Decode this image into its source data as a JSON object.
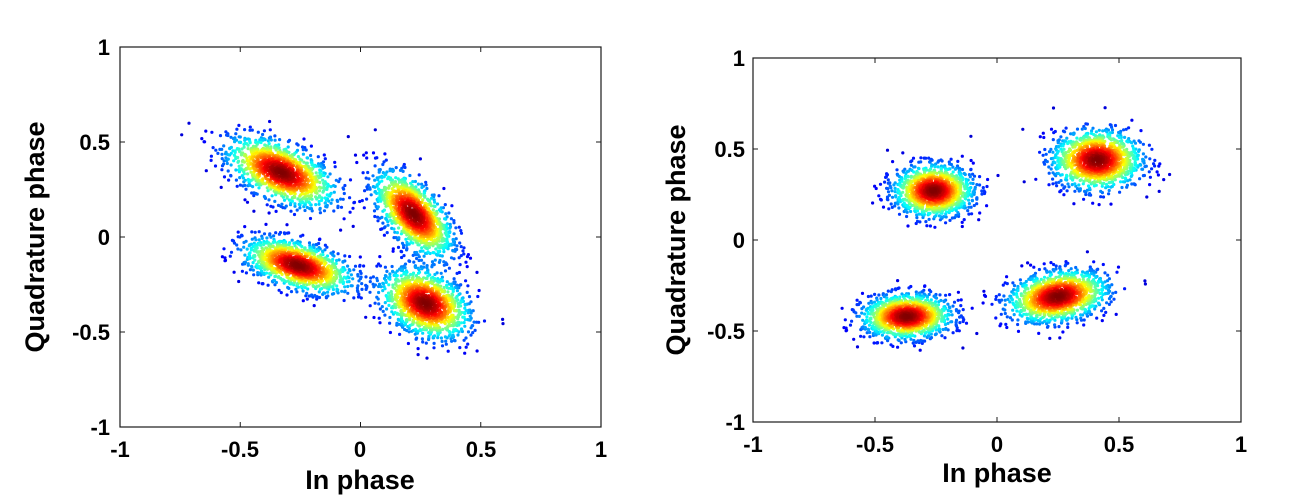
{
  "chart_data": [
    {
      "type": "scatter",
      "title": "",
      "xlabel": "In phase",
      "ylabel": "Quadrature phase",
      "xlim": [
        -1,
        1
      ],
      "ylim": [
        -1,
        1
      ],
      "xticks": [
        -1,
        -0.5,
        0,
        0.5,
        1
      ],
      "yticks": [
        -1,
        -0.5,
        0,
        0.5,
        1
      ],
      "xtick_labels": [
        "-1",
        "-0.5",
        "0",
        "0.5",
        "1"
      ],
      "ytick_labels": [
        "-1",
        "-0.5",
        "0",
        "0.5",
        "1"
      ],
      "grid": false,
      "colormap": "jet",
      "density_colored": true,
      "clusters": [
        {
          "x": -0.33,
          "y": 0.34,
          "sx": 0.11,
          "sy": 0.09,
          "rho": -0.55
        },
        {
          "x": 0.22,
          "y": 0.12,
          "sx": 0.08,
          "sy": 0.11,
          "rho": -0.6
        },
        {
          "x": -0.26,
          "y": -0.15,
          "sx": 0.11,
          "sy": 0.07,
          "rho": -0.5
        },
        {
          "x": 0.27,
          "y": -0.35,
          "sx": 0.09,
          "sy": 0.09,
          "rho": -0.35
        }
      ]
    },
    {
      "type": "scatter",
      "title": "",
      "xlabel": "In phase",
      "ylabel": "Quadrature phase",
      "xlim": [
        -1,
        1
      ],
      "ylim": [
        -1,
        1
      ],
      "xticks": [
        -1,
        -0.5,
        0,
        0.5,
        1
      ],
      "yticks": [
        -1,
        -0.5,
        0,
        0.5,
        1
      ],
      "xtick_labels": [
        "-1",
        "-0.5",
        "0",
        "0.5",
        "1"
      ],
      "ytick_labels": [
        "-1",
        "-0.5",
        "0",
        "0.5",
        "1"
      ],
      "grid": false,
      "colormap": "jet",
      "density_colored": true,
      "clusters": [
        {
          "x": -0.26,
          "y": 0.27,
          "sx": 0.08,
          "sy": 0.07,
          "rho": 0
        },
        {
          "x": 0.41,
          "y": 0.44,
          "sx": 0.09,
          "sy": 0.08,
          "rho": 0
        },
        {
          "x": -0.37,
          "y": -0.42,
          "sx": 0.09,
          "sy": 0.06,
          "rho": 0.05
        },
        {
          "x": 0.25,
          "y": -0.31,
          "sx": 0.1,
          "sy": 0.07,
          "rho": 0.25
        }
      ]
    }
  ]
}
